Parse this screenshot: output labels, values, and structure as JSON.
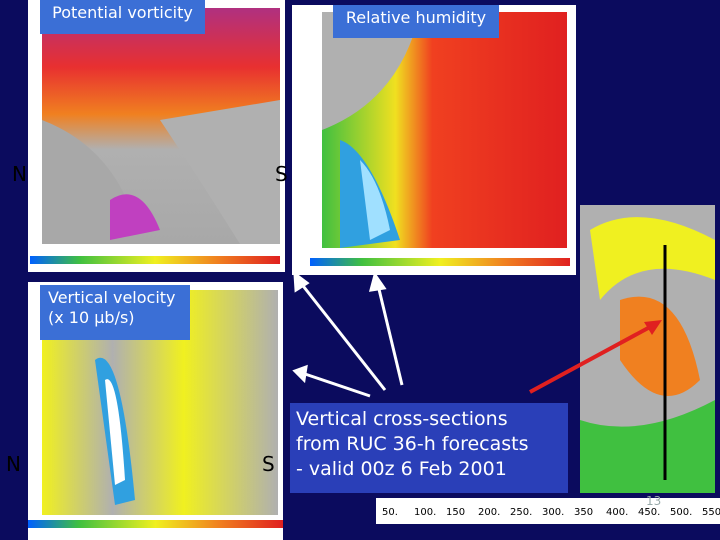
{
  "panels": [
    {
      "title": "Potential vorticity",
      "left": "N",
      "right": "S"
    },
    {
      "title": "Relative humidity"
    },
    {
      "title": [
        "Vertical velocity",
        "(x 10 μb/s)"
      ],
      "left": "N",
      "right": "S"
    }
  ],
  "caption": [
    "Vertical cross-sections",
    "from RUC 36-h forecasts",
    "- valid 00z 6 Feb 2001"
  ],
  "colorbar_labels": [
    "50.",
    "100.",
    "150",
    "200.",
    "250.",
    "300.",
    "350",
    "400.",
    "450.",
    "500.",
    "550."
  ],
  "page_number": "13"
}
